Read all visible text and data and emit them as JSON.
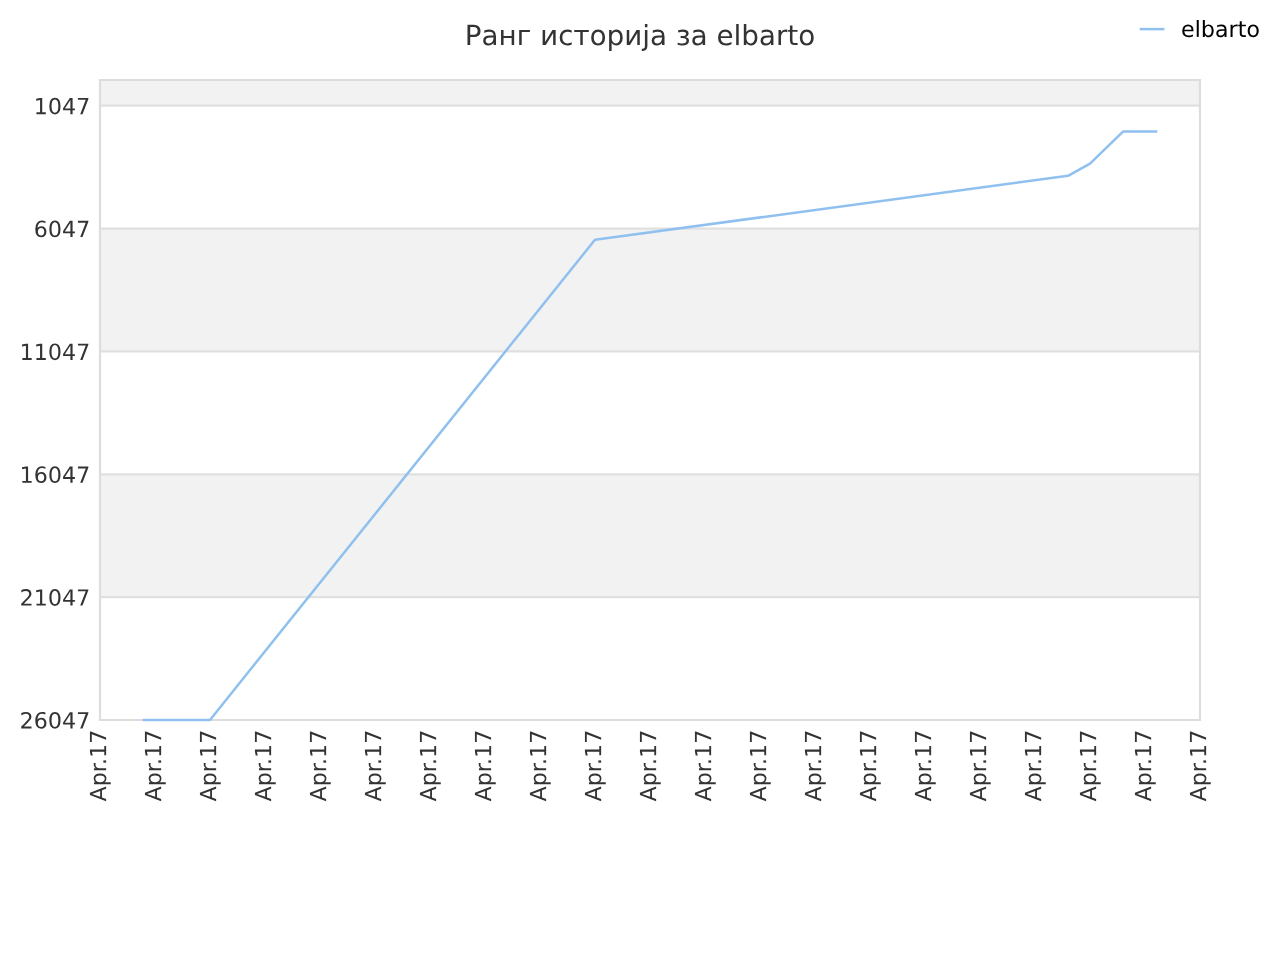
{
  "chart_data": {
    "type": "line",
    "title": "Ранг историја за elbarto",
    "categories": [
      "Apr.17",
      null,
      null,
      null,
      null,
      "Apr.17",
      null,
      null,
      null,
      null,
      "Apr.17",
      null,
      null,
      null,
      null,
      "Apr.17",
      null,
      null,
      null,
      null,
      "Apr.17",
      null,
      null,
      null,
      null,
      "Apr.17",
      null,
      null,
      null,
      null,
      "Apr.17",
      null,
      null,
      null,
      null,
      "Apr.17",
      null,
      null,
      null,
      null,
      "Apr.17",
      null,
      null,
      null,
      null,
      "Apr.17",
      null,
      null,
      null,
      null,
      "Apr.17",
      null,
      null,
      null,
      null,
      "Apr.17",
      null,
      null,
      null,
      null,
      "Apr.17",
      null,
      null,
      null,
      null,
      "Apr.17",
      null,
      null,
      null,
      null,
      "Apr.17",
      null,
      null,
      null,
      null,
      "Apr.17",
      null,
      null,
      null,
      null,
      "Apr.17",
      null,
      null,
      null,
      null,
      "Apr.17",
      null,
      null,
      null,
      null,
      "Apr.17",
      null,
      null,
      null,
      null,
      "Apr.17",
      null,
      null,
      null,
      null,
      "Apr.17"
    ],
    "series": [
      {
        "name": "elbarto",
        "color": "#90c0f0",
        "values": [
          null,
          null,
          null,
          null,
          26047,
          null,
          null,
          null,
          null,
          null,
          26047,
          null,
          null,
          null,
          null,
          null,
          null,
          null,
          null,
          null,
          null,
          null,
          null,
          null,
          null,
          null,
          null,
          null,
          null,
          null,
          null,
          null,
          null,
          null,
          null,
          null,
          null,
          null,
          null,
          null,
          null,
          null,
          null,
          null,
          null,
          6500,
          null,
          null,
          null,
          null,
          null,
          null,
          null,
          null,
          null,
          null,
          null,
          null,
          null,
          null,
          null,
          null,
          null,
          null,
          null,
          null,
          null,
          null,
          null,
          null,
          null,
          null,
          null,
          null,
          null,
          null,
          null,
          null,
          null,
          null,
          null,
          null,
          null,
          null,
          null,
          null,
          null,
          null,
          3900,
          null,
          3400,
          null,
          null,
          2100,
          null,
          null,
          2100,
          null,
          null,
          null,
          null
        ]
      }
    ],
    "ylim": [
      26047,
      0
    ],
    "yticks": [
      1047,
      6047,
      11047,
      16047,
      21047,
      26047
    ],
    "grid": "y",
    "legend": "top right",
    "marker": "none",
    "line_style": "solid"
  }
}
